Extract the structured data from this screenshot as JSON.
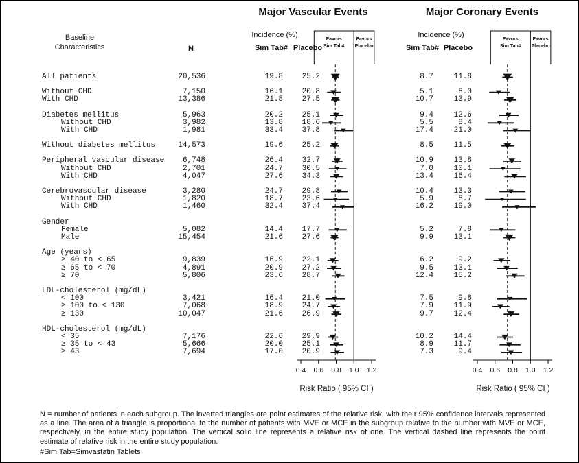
{
  "titles": {
    "mve": "Major Vascular Events",
    "mce": "Major Coronary Events"
  },
  "table_headers": {
    "baseline_line1": "Baseline",
    "baseline_line2": "Characteristics",
    "n": "N",
    "incidence": "Incidence (%)",
    "sim": "Sim Tab#",
    "placebo": "Placebo"
  },
  "plot_headers": {
    "favors_line1": "Favors",
    "favors_sim_line2": "Sim Tab#",
    "favors_placebo_line2": "Placebo"
  },
  "chart_data": {
    "type": "forest",
    "panels": [
      "Major Vascular Events",
      "Major Coronary Events"
    ],
    "x_ticks": [
      "0.4",
      "0.6",
      "0.8",
      "1.0",
      "1.2"
    ],
    "x_range": [
      0.4,
      1.2
    ],
    "xlabel": "Risk Ratio ( 95% CI )",
    "solid_line_at": 1.0,
    "dashed_line_mve": 0.79,
    "dashed_line_mce": 0.74,
    "rows": [
      {
        "label": "All patients",
        "indent": 0,
        "gap": true,
        "n": "20,536",
        "mve_sim": "19.8",
        "mve_placebo": "25.2",
        "mve_rr": 0.79,
        "mce_sim": "8.7",
        "mce_placebo": "11.8",
        "mce_rr": 0.74
      },
      {
        "label": "Without CHD",
        "indent": 0,
        "gap": true,
        "n": "7,150",
        "mve_sim": "16.1",
        "mve_placebo": "20.8",
        "mve_rr": 0.77,
        "mce_sim": "5.1",
        "mce_placebo": "8.0",
        "mce_rr": 0.64
      },
      {
        "label": "With CHD",
        "indent": 0,
        "n": "13,386",
        "mve_sim": "21.8",
        "mve_placebo": "27.5",
        "mve_rr": 0.79,
        "mce_sim": "10.7",
        "mce_placebo": "13.9",
        "mce_rr": 0.77
      },
      {
        "label": "Diabetes mellitus",
        "indent": 0,
        "gap": true,
        "n": "5,963",
        "mve_sim": "20.2",
        "mve_placebo": "25.1",
        "mve_rr": 0.8,
        "mce_sim": "9.4",
        "mce_placebo": "12.6",
        "mce_rr": 0.75
      },
      {
        "label": "Without CHD",
        "indent": 1,
        "n": "3,982",
        "mve_sim": "13.8",
        "mve_placebo": "18.6",
        "mve_rr": 0.74,
        "mce_sim": "5.5",
        "mce_placebo": "8.4",
        "mce_rr": 0.65
      },
      {
        "label": "With CHD",
        "indent": 1,
        "n": "1,981",
        "mve_sim": "33.4",
        "mve_placebo": "37.8",
        "mve_rr": 0.88,
        "mce_sim": "17.4",
        "mce_placebo": "21.0",
        "mce_rr": 0.83
      },
      {
        "label": "Without diabetes mellitus",
        "indent": 0,
        "gap": true,
        "n": "14,573",
        "mve_sim": "19.6",
        "mve_placebo": "25.2",
        "mve_rr": 0.78,
        "mce_sim": "8.5",
        "mce_placebo": "11.5",
        "mce_rr": 0.74
      },
      {
        "label": "Peripheral vascular disease",
        "indent": 0,
        "gap": true,
        "n": "6,748",
        "mve_sim": "26.4",
        "mve_placebo": "32.7",
        "mve_rr": 0.81,
        "mce_sim": "10.9",
        "mce_placebo": "13.8",
        "mce_rr": 0.79
      },
      {
        "label": "Without CHD",
        "indent": 1,
        "n": "2,701",
        "mve_sim": "24.7",
        "mve_placebo": "30.5",
        "mve_rr": 0.81,
        "mce_sim": "7.0",
        "mce_placebo": "10.1",
        "mce_rr": 0.69
      },
      {
        "label": "With CHD",
        "indent": 1,
        "n": "4,047",
        "mve_sim": "27.6",
        "mve_placebo": "34.3",
        "mve_rr": 0.8,
        "mce_sim": "13.4",
        "mce_placebo": "16.4",
        "mce_rr": 0.82
      },
      {
        "label": "Cerebrovascular disease",
        "indent": 0,
        "gap": true,
        "n": "3,280",
        "mve_sim": "24.7",
        "mve_placebo": "29.8",
        "mve_rr": 0.83,
        "mce_sim": "10.4",
        "mce_placebo": "13.3",
        "mce_rr": 0.78
      },
      {
        "label": "Without CHD",
        "indent": 1,
        "n": "1,820",
        "mve_sim": "18.7",
        "mve_placebo": "23.6",
        "mve_rr": 0.79,
        "mce_sim": "5.9",
        "mce_placebo": "8.7",
        "mce_rr": 0.68
      },
      {
        "label": "With CHD",
        "indent": 1,
        "n": "1,460",
        "mve_sim": "32.4",
        "mve_placebo": "37.4",
        "mve_rr": 0.87,
        "mce_sim": "16.2",
        "mce_placebo": "19.0",
        "mce_rr": 0.85
      },
      {
        "label": "Gender",
        "indent": 0,
        "gap": true,
        "header": true
      },
      {
        "label": "Female",
        "indent": 1,
        "n": "5,082",
        "mve_sim": "14.4",
        "mve_placebo": "17.7",
        "mve_rr": 0.81,
        "mce_sim": "5.2",
        "mce_placebo": "7.8",
        "mce_rr": 0.67
      },
      {
        "label": "Male",
        "indent": 1,
        "n": "15,454",
        "mve_sim": "21.6",
        "mve_placebo": "27.6",
        "mve_rr": 0.78,
        "mce_sim": "9.9",
        "mce_placebo": "13.1",
        "mce_rr": 0.76
      },
      {
        "label": "Age (years)",
        "indent": 0,
        "gap": true,
        "header": true
      },
      {
        "label": "≥ 40 to < 65",
        "indent": 1,
        "n": "9,839",
        "mve_sim": "16.9",
        "mve_placebo": "22.1",
        "mve_rr": 0.76,
        "mce_sim": "6.2",
        "mce_placebo": "9.2",
        "mce_rr": 0.67
      },
      {
        "label": "≥ 65 to < 70",
        "indent": 1,
        "n": "4,891",
        "mve_sim": "20.9",
        "mve_placebo": "27.2",
        "mve_rr": 0.77,
        "mce_sim": "9.5",
        "mce_placebo": "13.1",
        "mce_rr": 0.73
      },
      {
        "label": "≥ 70",
        "indent": 1,
        "n": "5,806",
        "mve_sim": "23.6",
        "mve_placebo": "28.7",
        "mve_rr": 0.82,
        "mce_sim": "12.4",
        "mce_placebo": "15.2",
        "mce_rr": 0.82
      },
      {
        "label": "LDL-cholesterol (mg/dL)",
        "indent": 0,
        "gap": true,
        "header": true
      },
      {
        "label": "< 100",
        "indent": 1,
        "n": "3,421",
        "mve_sim": "16.4",
        "mve_placebo": "21.0",
        "mve_rr": 0.78,
        "mce_sim": "7.5",
        "mce_placebo": "9.8",
        "mce_rr": 0.77
      },
      {
        "label": "≥ 100 to < 130",
        "indent": 1,
        "n": "7,068",
        "mve_sim": "18.9",
        "mve_placebo": "24.7",
        "mve_rr": 0.77,
        "mce_sim": "7.9",
        "mce_placebo": "11.9",
        "mce_rr": 0.66
      },
      {
        "label": "≥ 130",
        "indent": 1,
        "n": "10,047",
        "mve_sim": "21.6",
        "mve_placebo": "26.9",
        "mve_rr": 0.8,
        "mce_sim": "9.7",
        "mce_placebo": "12.4",
        "mce_rr": 0.78
      },
      {
        "label": "HDL-cholesterol (mg/dL)",
        "indent": 0,
        "gap": true,
        "header": true
      },
      {
        "label": "< 35",
        "indent": 1,
        "n": "7,176",
        "mve_sim": "22.6",
        "mve_placebo": "29.9",
        "mve_rr": 0.76,
        "mce_sim": "10.2",
        "mce_placebo": "14.4",
        "mce_rr": 0.71
      },
      {
        "label": "≥ 35 to < 43",
        "indent": 1,
        "n": "5,666",
        "mve_sim": "20.0",
        "mve_placebo": "25.1",
        "mve_rr": 0.8,
        "mce_sim": "8.9",
        "mce_placebo": "11.7",
        "mce_rr": 0.76
      },
      {
        "label": "≥ 43",
        "indent": 1,
        "n": "7,694",
        "mve_sim": "17.0",
        "mve_placebo": "20.9",
        "mve_rr": 0.81,
        "mce_sim": "7.3",
        "mce_placebo": "9.4",
        "mce_rr": 0.78
      }
    ]
  },
  "footnote": "N = number of patients in each subgroup. The inverted triangles are point estimates of the relative risk, with their 95% confidence intervals represented as a line. The area of a triangle is proportional to the number of patients with MVE or MCE in the subgroup relative to the number with MVE or MCE, respectively, in the entire study population. The vertical solid line represents a relative risk of one. The vertical dashed line represents the point estimate of relative risk in the entire study population.",
  "simtab_note": "#Sim Tab=Simvastatin Tablets"
}
